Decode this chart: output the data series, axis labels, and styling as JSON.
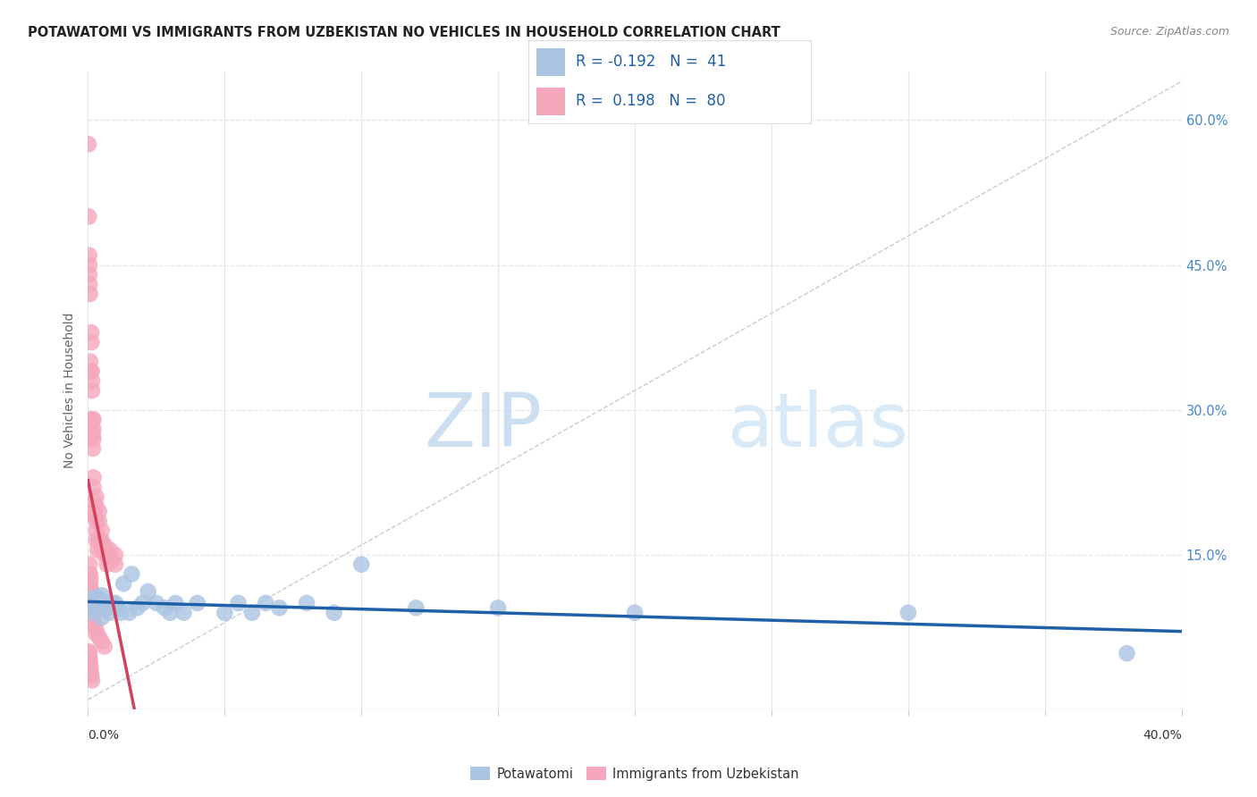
{
  "title": "POTAWATOMI VS IMMIGRANTS FROM UZBEKISTAN NO VEHICLES IN HOUSEHOLD CORRELATION CHART",
  "source": "Source: ZipAtlas.com",
  "ylabel": "No Vehicles in Household",
  "right_yticks": [
    "60.0%",
    "45.0%",
    "30.0%",
    "15.0%"
  ],
  "right_ytick_vals": [
    0.6,
    0.45,
    0.3,
    0.15
  ],
  "xlim": [
    0.0,
    0.4
  ],
  "ylim": [
    -0.01,
    0.65
  ],
  "color_blue": "#aac4e2",
  "color_pink": "#f5a8bc",
  "line_color_blue": "#2060a8",
  "line_color_pink": "#d44060",
  "grid_color": "#e8e8e8",
  "bg_color": "#ffffff",
  "watermark_zip_color": "#ccdff0",
  "watermark_atlas_color": "#d8eaf8",
  "potawatomi_x": [
    0.002,
    0.002,
    0.002,
    0.003,
    0.003,
    0.004,
    0.004,
    0.005,
    0.005,
    0.006,
    0.007,
    0.008,
    0.009,
    0.01,
    0.011,
    0.012,
    0.013,
    0.015,
    0.016,
    0.018,
    0.02,
    0.022,
    0.025,
    0.028,
    0.03,
    0.032,
    0.035,
    0.04,
    0.05,
    0.055,
    0.06,
    0.065,
    0.07,
    0.08,
    0.09,
    0.1,
    0.12,
    0.15,
    0.2,
    0.3,
    0.38
  ],
  "potawatomi_y": [
    0.105,
    0.095,
    0.09,
    0.105,
    0.095,
    0.105,
    0.095,
    0.108,
    0.085,
    0.1,
    0.095,
    0.09,
    0.1,
    0.1,
    0.095,
    0.09,
    0.12,
    0.09,
    0.13,
    0.095,
    0.1,
    0.112,
    0.1,
    0.095,
    0.09,
    0.1,
    0.09,
    0.1,
    0.09,
    0.1,
    0.09,
    0.1,
    0.095,
    0.1,
    0.09,
    0.14,
    0.095,
    0.095,
    0.09,
    0.09,
    0.048
  ],
  "uzbekistan_x": [
    0.0002,
    0.0003,
    0.0004,
    0.0005,
    0.0005,
    0.0006,
    0.0007,
    0.0008,
    0.0009,
    0.001,
    0.001,
    0.001,
    0.001,
    0.001,
    0.0012,
    0.0013,
    0.0014,
    0.0015,
    0.0015,
    0.0016,
    0.0017,
    0.0018,
    0.002,
    0.002,
    0.002,
    0.002,
    0.002,
    0.0022,
    0.0023,
    0.0025,
    0.003,
    0.003,
    0.003,
    0.003,
    0.003,
    0.0035,
    0.004,
    0.004,
    0.004,
    0.005,
    0.005,
    0.005,
    0.006,
    0.006,
    0.007,
    0.007,
    0.008,
    0.009,
    0.01,
    0.01,
    0.0005,
    0.0006,
    0.0007,
    0.0008,
    0.0009,
    0.001,
    0.001,
    0.0012,
    0.0014,
    0.0015,
    0.0016,
    0.0018,
    0.002,
    0.002,
    0.0025,
    0.003,
    0.003,
    0.004,
    0.005,
    0.006,
    0.0003,
    0.0004,
    0.0005,
    0.0006,
    0.0007,
    0.0008,
    0.0009,
    0.001,
    0.0012,
    0.0015
  ],
  "uzbekistan_y": [
    0.575,
    0.5,
    0.46,
    0.45,
    0.44,
    0.43,
    0.42,
    0.35,
    0.34,
    0.29,
    0.285,
    0.28,
    0.275,
    0.27,
    0.38,
    0.37,
    0.34,
    0.33,
    0.32,
    0.29,
    0.275,
    0.26,
    0.29,
    0.28,
    0.27,
    0.23,
    0.22,
    0.205,
    0.195,
    0.19,
    0.21,
    0.2,
    0.185,
    0.175,
    0.165,
    0.155,
    0.195,
    0.185,
    0.165,
    0.175,
    0.165,
    0.155,
    0.16,
    0.15,
    0.15,
    0.14,
    0.155,
    0.145,
    0.15,
    0.14,
    0.13,
    0.14,
    0.13,
    0.12,
    0.115,
    0.125,
    0.115,
    0.11,
    0.105,
    0.1,
    0.095,
    0.09,
    0.085,
    0.08,
    0.078,
    0.072,
    0.068,
    0.065,
    0.06,
    0.055,
    0.05,
    0.048,
    0.045,
    0.042,
    0.038,
    0.035,
    0.032,
    0.028,
    0.025,
    0.02
  ]
}
